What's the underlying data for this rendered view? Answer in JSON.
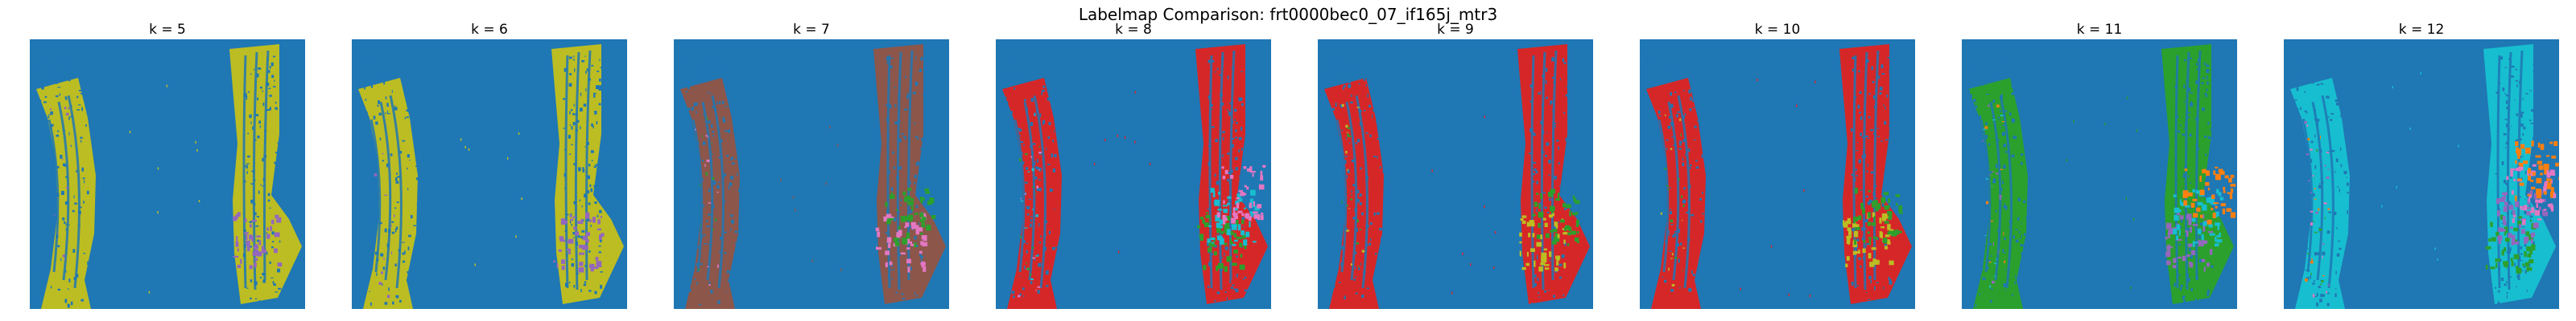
{
  "figure": {
    "title": "Labelmap Comparison: frt0000bec0_07_if165j_mtr3",
    "background_color": "#1f77b4"
  },
  "panels": [
    {
      "title": "k = 5",
      "main": "#bcbd22",
      "accents": [
        "#9467bd"
      ]
    },
    {
      "title": "k = 6",
      "main": "#bcbd22",
      "accents": [
        "#9467bd"
      ]
    },
    {
      "title": "k = 7",
      "main": "#8c564b",
      "accents": [
        "#e377c2",
        "#2ca02c"
      ]
    },
    {
      "title": "k = 8",
      "main": "#d62728",
      "accents": [
        "#2ca02c",
        "#17becf",
        "#e377c2"
      ]
    },
    {
      "title": "k = 9",
      "main": "#d62728",
      "accents": [
        "#bcbd22",
        "#2ca02c"
      ]
    },
    {
      "title": "k = 10",
      "main": "#d62728",
      "accents": [
        "#bcbd22",
        "#2ca02c"
      ]
    },
    {
      "title": "k = 11",
      "main": "#2ca02c",
      "accents": [
        "#9467bd",
        "#17becf",
        "#ff7f0e"
      ]
    },
    {
      "title": "k = 12",
      "main": "#17becf",
      "accents": [
        "#2ca02c",
        "#9467bd",
        "#e377c2",
        "#ff7f0e"
      ]
    }
  ]
}
